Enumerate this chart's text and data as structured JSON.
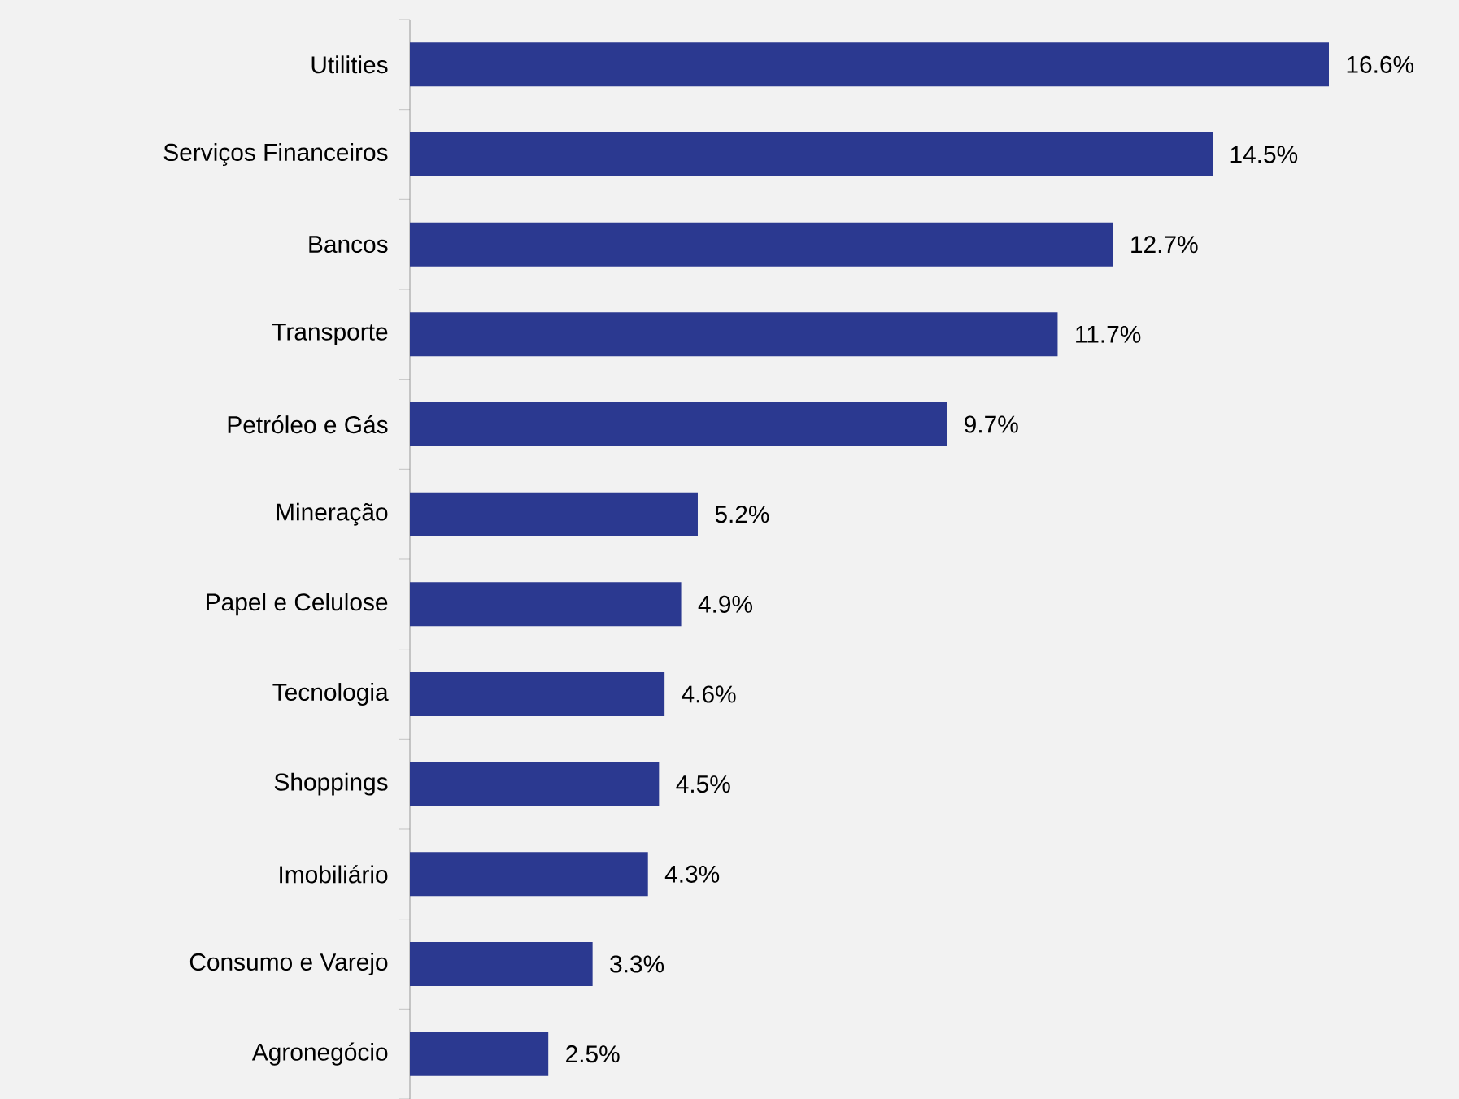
{
  "chart_data": {
    "type": "bar",
    "orientation": "horizontal",
    "categories": [
      "Utilities",
      "Serviços Financeiros",
      "Bancos",
      "Transporte",
      "Petróleo e Gás",
      "Mineração",
      "Papel e Celulose",
      "Tecnologia",
      "Shoppings",
      "Imobiliário",
      "Consumo e Varejo",
      "Agronegócio"
    ],
    "values": [
      16.6,
      14.5,
      12.7,
      11.7,
      9.7,
      5.2,
      4.9,
      4.6,
      4.5,
      4.3,
      3.3,
      2.5
    ],
    "value_labels": [
      "16.6%",
      "14.5%",
      "12.7%",
      "11.7%",
      "9.7%",
      "5.2%",
      "4.9%",
      "4.6%",
      "4.5%",
      "4.3%",
      "3.3%",
      "2.5%"
    ],
    "color": "#2b3990"
  }
}
